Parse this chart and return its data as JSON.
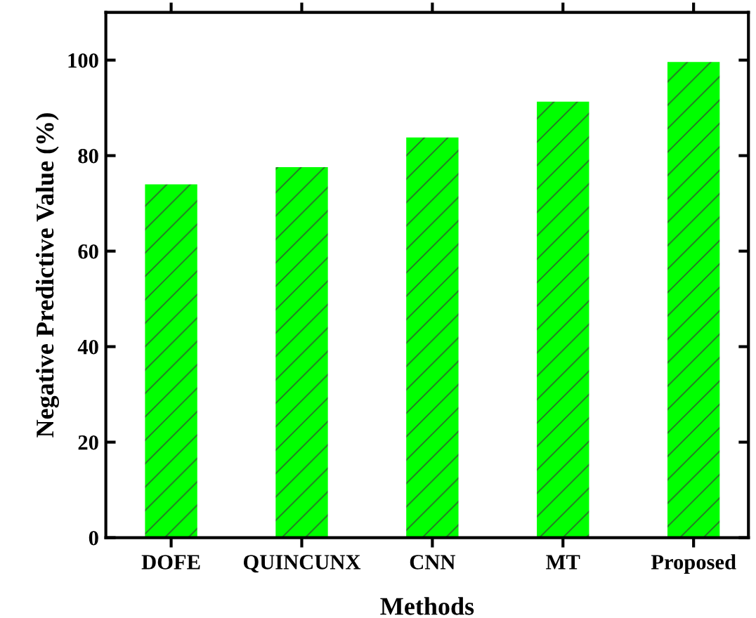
{
  "chart_data": {
    "type": "bar",
    "xlabel": "Methods",
    "ylabel": "Negative Predictive Value (%)",
    "categories": [
      "DOFE",
      "QUINCUNX",
      "CNN",
      "MT",
      "Proposed"
    ],
    "values": [
      74.0,
      77.6,
      83.8,
      91.3,
      99.6
    ],
    "color": "#00ff00",
    "ylim": [
      0,
      110
    ],
    "yticks": [
      0,
      20,
      40,
      60,
      80,
      100
    ],
    "grid": false,
    "legend": false
  }
}
